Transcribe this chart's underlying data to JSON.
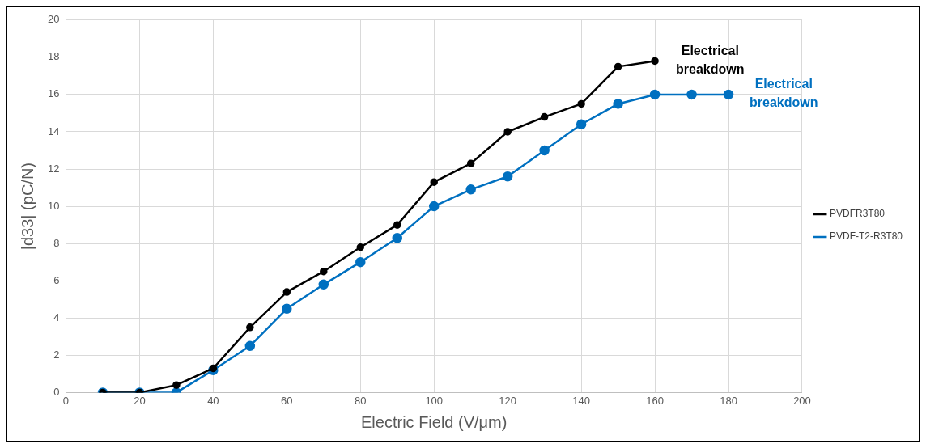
{
  "chart_data": {
    "type": "line",
    "xlabel": "Electric Field (V/μm)",
    "ylabel": "|d33| (pC/N)",
    "series": [
      {
        "name": "PVDFR3T80",
        "color": "#000000",
        "x": [
          10,
          20,
          30,
          40,
          50,
          60,
          70,
          80,
          90,
          100,
          110,
          120,
          130,
          140,
          150,
          160
        ],
        "values": [
          0,
          0,
          0.4,
          1.3,
          3.5,
          5.4,
          6.5,
          7.8,
          9.0,
          11.3,
          12.3,
          14.0,
          14.8,
          15.5,
          17.5,
          17.8
        ]
      },
      {
        "name": "PVDF-T2-R3T80",
        "color": "#0070c0",
        "x": [
          10,
          20,
          30,
          40,
          50,
          60,
          70,
          80,
          90,
          100,
          110,
          120,
          130,
          140,
          150,
          160,
          170,
          180
        ],
        "values": [
          0,
          0,
          0,
          1.2,
          2.5,
          4.5,
          5.8,
          7.0,
          8.3,
          10.0,
          10.9,
          11.6,
          13.0,
          14.4,
          15.5,
          16,
          16,
          16
        ]
      }
    ],
    "annotations": [
      {
        "text": "Electrical breakdown",
        "x": 160,
        "y": 17.8
      },
      {
        "text": "Electrical breakdown",
        "x": 180,
        "y": 16
      }
    ],
    "xlim": [
      0,
      200
    ],
    "xticks": [
      0,
      20,
      40,
      60,
      80,
      100,
      120,
      140,
      160,
      180,
      200
    ],
    "ylim": [
      0,
      20
    ],
    "yticks": [
      0,
      2,
      4,
      6,
      8,
      10,
      12,
      14,
      16,
      18,
      20
    ],
    "grid": true,
    "legend": "right",
    "marker": "circle",
    "line_style": "solid"
  }
}
